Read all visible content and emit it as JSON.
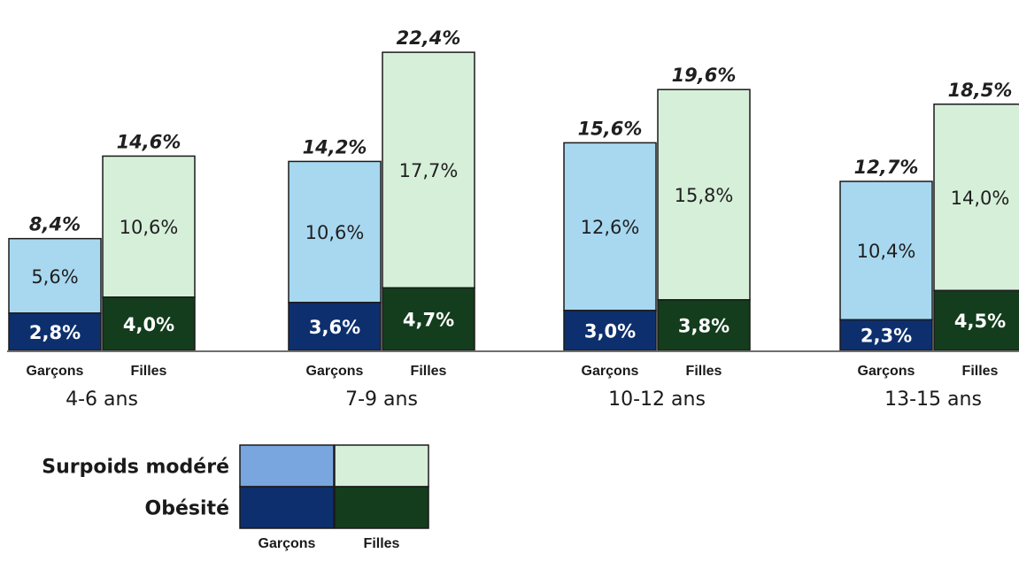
{
  "chart_data": {
    "type": "bar",
    "stacked": true,
    "groups": [
      {
        "label": "4-6 ans",
        "bars": [
          {
            "sex": "Garçons",
            "total": "8,4%",
            "values": {
              "obesite": 2.8,
              "surpoids": 5.6
            },
            "labels": {
              "obesite": "2,8%",
              "surpoids": "5,6%"
            }
          },
          {
            "sex": "Filles",
            "total": "14,6%",
            "values": {
              "obesite": 4.0,
              "surpoids": 10.6
            },
            "labels": {
              "obesite": "4,0%",
              "surpoids": "10,6%"
            }
          }
        ]
      },
      {
        "label": "7-9 ans",
        "bars": [
          {
            "sex": "Garçons",
            "total": "14,2%",
            "values": {
              "obesite": 3.6,
              "surpoids": 10.6
            },
            "labels": {
              "obesite": "3,6%",
              "surpoids": "10,6%"
            }
          },
          {
            "sex": "Filles",
            "total": "22,4%",
            "values": {
              "obesite": 4.7,
              "surpoids": 17.7
            },
            "labels": {
              "obesite": "4,7%",
              "surpoids": "17,7%"
            }
          }
        ]
      },
      {
        "label": "10-12 ans",
        "bars": [
          {
            "sex": "Garçons",
            "total": "15,6%",
            "values": {
              "obesite": 3.0,
              "surpoids": 12.6
            },
            "labels": {
              "obesite": "3,0%",
              "surpoids": "12,6%"
            }
          },
          {
            "sex": "Filles",
            "total": "19,6%",
            "values": {
              "obesite": 3.8,
              "surpoids": 15.8
            },
            "labels": {
              "obesite": "3,8%",
              "surpoids": "15,8%"
            }
          }
        ]
      },
      {
        "label": "13-15 ans",
        "bars": [
          {
            "sex": "Garçons",
            "total": "12,7%",
            "values": {
              "obesite": 2.3,
              "surpoids": 10.4
            },
            "labels": {
              "obesite": "2,3%",
              "surpoids": "10,4%"
            }
          },
          {
            "sex": "Filles",
            "total": "18,5%",
            "values": {
              "obesite": 4.5,
              "surpoids": 14.0
            },
            "labels": {
              "obesite": "4,5%",
              "surpoids": "14,0%"
            }
          }
        ]
      }
    ],
    "legend": {
      "rows": [
        "Surpoids modéré",
        "Obésité"
      ],
      "columns": [
        "Garçons",
        "Filles"
      ],
      "placement": "bottom-left"
    },
    "ylim": [
      0,
      24
    ],
    "grid": false,
    "colors": {
      "garcons_surpoids": "#a8d8f0",
      "garcons_obesite": "#0e2f6e",
      "filles_surpoids": "#d6efd9",
      "filles_obesite": "#133d1c",
      "legend_garcons_surpoids": "#7aa6e0",
      "outline": "#1a1a1a",
      "baseline": "#6e6e6e"
    }
  }
}
